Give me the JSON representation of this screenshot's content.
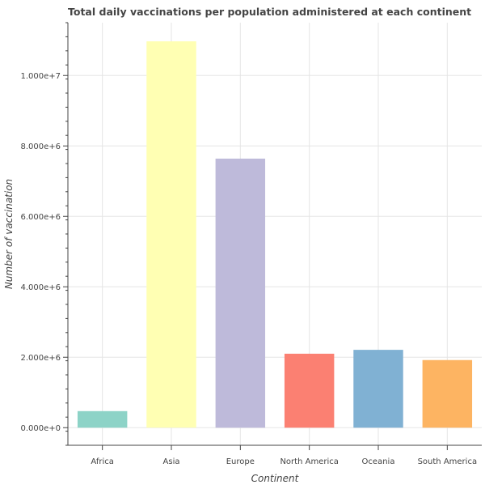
{
  "chart_data": {
    "type": "bar",
    "title": "Total daily vaccinations per population administered at each continent",
    "xlabel": "Continent",
    "ylabel": "Number of vaccination",
    "categories": [
      "Africa",
      "Asia",
      "Europe",
      "North America",
      "Oceania",
      "South America"
    ],
    "values": [
      470000,
      10970000,
      7640000,
      2100000,
      2210000,
      1920000
    ],
    "colors": [
      "#8DD3C7",
      "#FFFFB3",
      "#BEBADA",
      "#FB8072",
      "#80B1D3",
      "#FDB462"
    ],
    "ylim": [
      -500000,
      11500000
    ],
    "yticks": [
      0,
      2000000,
      4000000,
      6000000,
      8000000,
      10000000
    ],
    "ytick_labels": [
      "0.000e+0",
      "2.000e+6",
      "4.000e+6",
      "6.000e+6",
      "8.000e+6",
      "1.000e+7"
    ],
    "grid": true,
    "legend": "none"
  }
}
